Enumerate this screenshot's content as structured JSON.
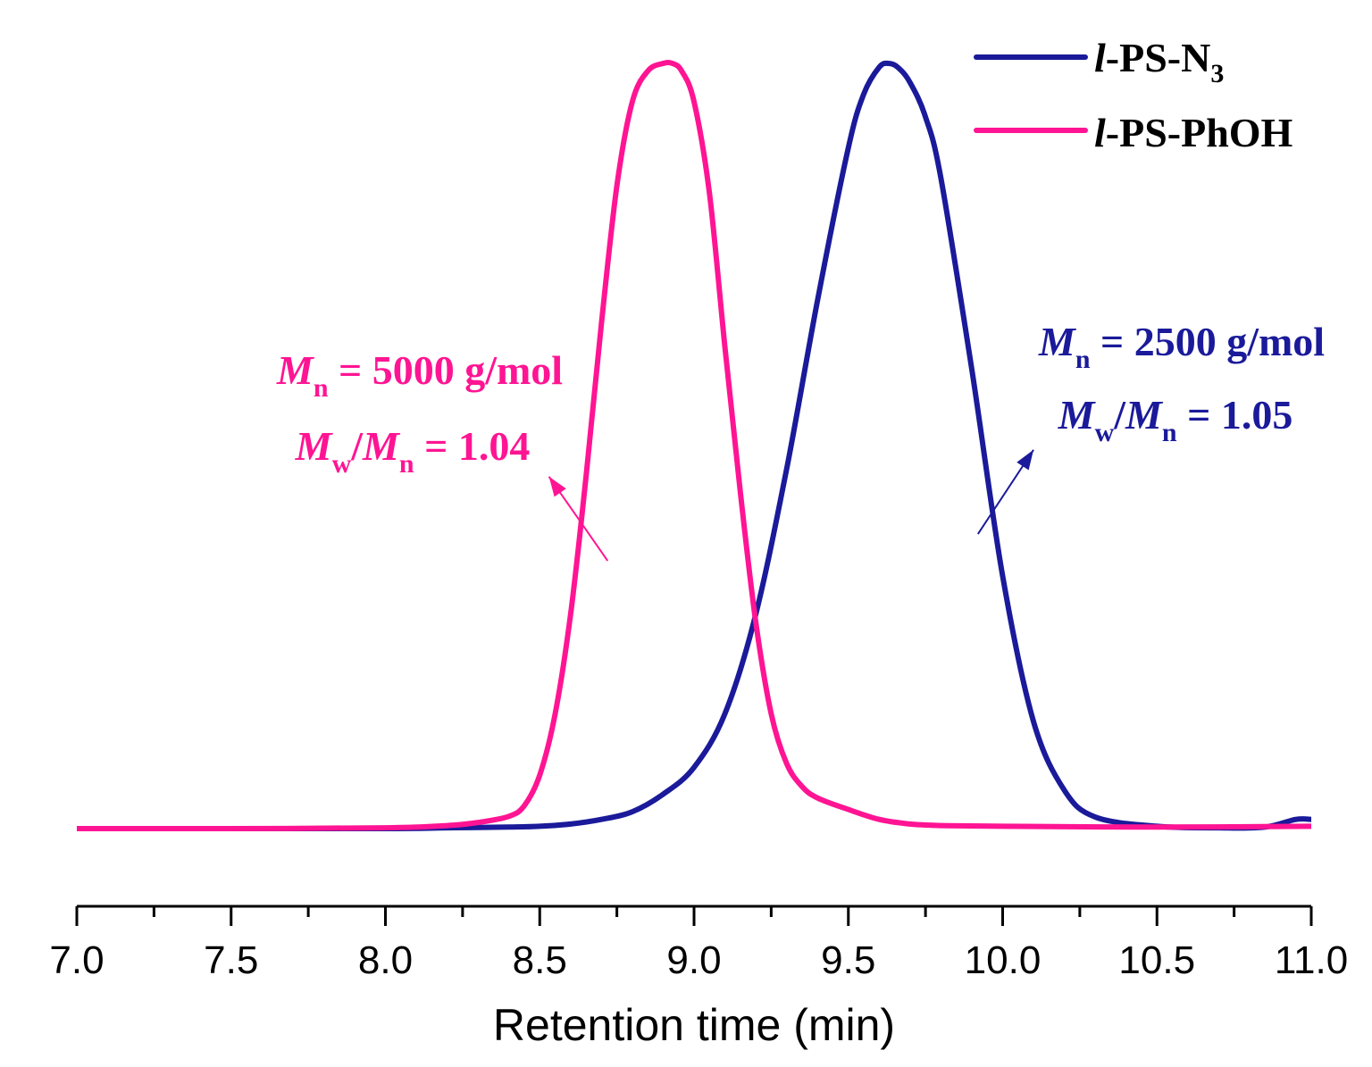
{
  "chart_data": {
    "type": "line",
    "title": "",
    "xlabel": "Retention time (min)",
    "ylabel": "",
    "xlim": [
      7.0,
      11.0
    ],
    "ylim": [
      0,
      1.08
    ],
    "xticks": [
      "7.0",
      "7.5",
      "8.0",
      "8.5",
      "9.0",
      "9.5",
      "10.0",
      "10.5",
      "11.0"
    ],
    "grid": false,
    "legend_position": "top-right",
    "series": [
      {
        "name": "l-PS-N3",
        "legend": {
          "italic": "l",
          "main": "-PS-N",
          "sub": "3"
        },
        "color": "#1a1a9a",
        "x": [
          7.0,
          7.5,
          8.0,
          8.2,
          8.4,
          8.5,
          8.6,
          8.7,
          8.8,
          8.9,
          9.0,
          9.1,
          9.2,
          9.3,
          9.4,
          9.5,
          9.55,
          9.6,
          9.63,
          9.66,
          9.7,
          9.75,
          9.8,
          9.9,
          10.0,
          10.1,
          10.2,
          10.3,
          10.5,
          10.7,
          10.85,
          10.95,
          11.0
        ],
        "y": [
          0.0,
          0.0,
          0.0,
          0.001,
          0.002,
          0.003,
          0.006,
          0.012,
          0.022,
          0.045,
          0.08,
          0.15,
          0.28,
          0.47,
          0.69,
          0.89,
          0.96,
          0.995,
          1.0,
          0.995,
          0.975,
          0.93,
          0.85,
          0.6,
          0.33,
          0.14,
          0.05,
          0.015,
          0.003,
          0.001,
          0.002,
          0.012,
          0.012
        ]
      },
      {
        "name": "l-PS-PhOH",
        "legend": {
          "italic": "l",
          "main": "-PS-PhOH",
          "sub": ""
        },
        "color": "#ff1493",
        "x": [
          7.0,
          7.5,
          8.0,
          8.2,
          8.3,
          8.4,
          8.45,
          8.5,
          8.55,
          8.6,
          8.65,
          8.7,
          8.75,
          8.8,
          8.85,
          8.9,
          8.93,
          8.96,
          9.0,
          9.05,
          9.1,
          9.15,
          9.2,
          9.25,
          9.3,
          9.35,
          9.4,
          9.5,
          9.6,
          9.7,
          9.8,
          10.0,
          10.5,
          11.0
        ],
        "y": [
          0.0,
          0.0,
          0.001,
          0.004,
          0.008,
          0.016,
          0.03,
          0.07,
          0.15,
          0.28,
          0.46,
          0.66,
          0.84,
          0.95,
          0.99,
          1.0,
          1.0,
          0.99,
          0.95,
          0.83,
          0.63,
          0.44,
          0.27,
          0.15,
          0.085,
          0.055,
          0.04,
          0.025,
          0.012,
          0.006,
          0.004,
          0.003,
          0.002,
          0.003
        ]
      }
    ],
    "annotations": [
      {
        "series": "l-PS-PhOH",
        "color": "#ff1493",
        "mn_symbol": "M",
        "mn_sub": "n",
        "mn_text": " = 5000 g/mol",
        "pdi_symbol1": "M",
        "pdi_sub1": "w",
        "pdi_slash": "/",
        "pdi_symbol2": "M",
        "pdi_sub2": "n",
        "pdi_text": " = 1.04",
        "arrow_from": {
          "x": 8.72,
          "y": 0.35
        },
        "arrow_to": {
          "x": 8.53,
          "y": 0.46
        }
      },
      {
        "series": "l-PS-N3",
        "color": "#1a1a9a",
        "mn_symbol": "M",
        "mn_sub": "n",
        "mn_text": " = 2500 g/mol",
        "pdi_symbol1": "M",
        "pdi_sub1": "w",
        "pdi_slash": "/",
        "pdi_symbol2": "M",
        "pdi_sub2": "n",
        "pdi_text": " = 1.05",
        "arrow_from": {
          "x": 9.92,
          "y": 0.385
        },
        "arrow_to": {
          "x": 10.1,
          "y": 0.495
        }
      }
    ]
  }
}
